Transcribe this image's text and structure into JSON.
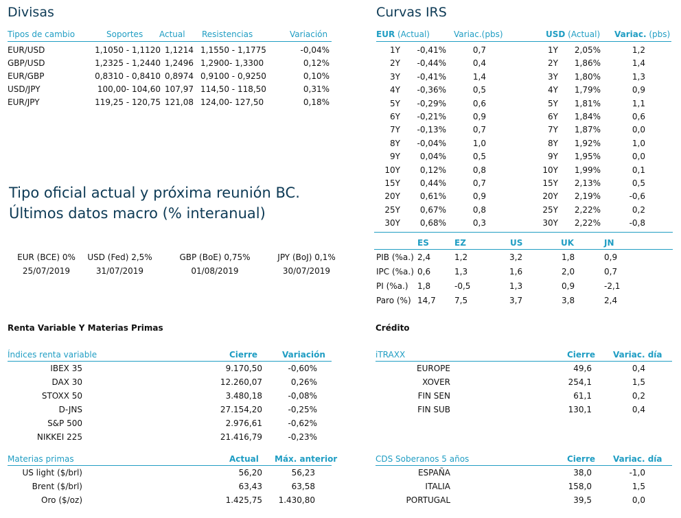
{
  "divisas": {
    "title": "Divisas",
    "headers": [
      "Tipos de cambio",
      "Soportes",
      "Actual",
      "Resistencias",
      "Variación"
    ],
    "rows": [
      {
        "pair": "EUR/USD",
        "soportes": "1,1050 - 1,1120",
        "actual": "1,1214",
        "resistencias": "1,1550 - 1,1775",
        "variacion": "-0,04%"
      },
      {
        "pair": "GBP/USD",
        "soportes": "1,2325 - 1,2440",
        "actual": "1,2496",
        "resistencias": "1,2900- 1,3300",
        "variacion": "0,12%"
      },
      {
        "pair": "EUR/GBP",
        "soportes": "0,8310 - 0,8410",
        "actual": "0,8974",
        "resistencias": "0,9100 - 0,9250",
        "variacion": "0,10%"
      },
      {
        "pair": "USD/JPY",
        "soportes": "100,00- 104,60",
        "actual": "107,97",
        "resistencias": "114,50 - 118,50",
        "variacion": "0,31%"
      },
      {
        "pair": "EUR/JPY",
        "soportes": "119,25 - 120,75",
        "actual": "121,08",
        "resistencias": "124,00- 127,50",
        "variacion": "0,18%"
      }
    ]
  },
  "irs": {
    "title": "Curvas IRS",
    "eur_bold": "EUR",
    "eur_rest": " (Actual)",
    "var_label": "Variac.(pbs)",
    "usd_bold": "USD",
    "usd_rest": " (Actual)",
    "usd_var_bold": "Variac.",
    "usd_var_rest": " (pbs)",
    "rows": [
      {
        "t": "1Y",
        "eur": "-0,41%",
        "eurv": "0,7",
        "t2": "1Y",
        "usd": "2,05%",
        "usdv": "1,2"
      },
      {
        "t": "2Y",
        "eur": "-0,44%",
        "eurv": "0,4",
        "t2": "2Y",
        "usd": "1,86%",
        "usdv": "1,4"
      },
      {
        "t": "3Y",
        "eur": "-0,41%",
        "eurv": "1,4",
        "t2": "3Y",
        "usd": "1,80%",
        "usdv": "1,3"
      },
      {
        "t": "4Y",
        "eur": "-0,36%",
        "eurv": "0,5",
        "t2": "4Y",
        "usd": "1,79%",
        "usdv": "0,9"
      },
      {
        "t": "5Y",
        "eur": "-0,29%",
        "eurv": "0,6",
        "t2": "5Y",
        "usd": "1,81%",
        "usdv": "1,1"
      },
      {
        "t": "6Y",
        "eur": "-0,21%",
        "eurv": "0,9",
        "t2": "6Y",
        "usd": "1,84%",
        "usdv": "0,6"
      },
      {
        "t": "7Y",
        "eur": "-0,13%",
        "eurv": "0,7",
        "t2": "7Y",
        "usd": "1,87%",
        "usdv": "0,0"
      },
      {
        "t": "8Y",
        "eur": "-0,04%",
        "eurv": "1,0",
        "t2": "8Y",
        "usd": "1,92%",
        "usdv": "1,0"
      },
      {
        "t": "9Y",
        "eur": "0,04%",
        "eurv": "0,5",
        "t2": "9Y",
        "usd": "1,95%",
        "usdv": "0,0"
      },
      {
        "t": "10Y",
        "eur": "0,12%",
        "eurv": "0,8",
        "t2": "10Y",
        "usd": "1,99%",
        "usdv": "0,1"
      },
      {
        "t": "15Y",
        "eur": "0,44%",
        "eurv": "0,7",
        "t2": "15Y",
        "usd": "2,13%",
        "usdv": "0,5"
      },
      {
        "t": "20Y",
        "eur": "0,61%",
        "eurv": "0,9",
        "t2": "20Y",
        "usd": "2,19%",
        "usdv": "-0,6"
      },
      {
        "t": "25Y",
        "eur": "0,67%",
        "eurv": "0,8",
        "t2": "25Y",
        "usd": "2,22%",
        "usdv": "0,2"
      },
      {
        "t": "30Y",
        "eur": "0,68%",
        "eurv": "0,3",
        "t2": "30Y",
        "usd": "2,22%",
        "usdv": "-0,8"
      }
    ]
  },
  "tipo_oficial": {
    "title_line1": "Tipo oficial actual y próxima reunión BC.",
    "title_line2": "Últimos datos macro (% interanual)",
    "items": [
      {
        "label": "EUR (BCE) 0%",
        "date": "25/07/2019"
      },
      {
        "label": "USD (Fed) 2,5%",
        "date": "31/07/2019"
      },
      {
        "label": "GBP (BoE) 0,75%",
        "date": "01/08/2019"
      },
      {
        "label": "JPY (BoJ) 0,1%",
        "date": "30/07/2019"
      }
    ]
  },
  "macro": {
    "headers": [
      "ES",
      "EZ",
      "US",
      "UK",
      "JN"
    ],
    "rows": [
      {
        "label": "PIB (%a.)",
        "vals": [
          "2,4",
          "1,2",
          "3,2",
          "1,8",
          "0,9"
        ]
      },
      {
        "label": "IPC (%a.)",
        "vals": [
          "0,6",
          "1,3",
          "1,6",
          "2,0",
          "0,7"
        ]
      },
      {
        "label": "PI (%a.)",
        "vals": [
          "1,8",
          "-0,5",
          "1,3",
          "0,9",
          "-2,1"
        ]
      },
      {
        "label": "Paro (%)",
        "vals": [
          "14,7",
          "7,5",
          "3,7",
          "3,8",
          "2,4"
        ]
      }
    ]
  },
  "renta": {
    "title": "Renta Variable Y Materias Primas",
    "indices_header": "Índices renta variable",
    "cierre_header": "Cierre",
    "variacion_header": "Variación",
    "indices": [
      {
        "name": "IBEX 35",
        "cierre": "9.170,50",
        "var": "-0,60%"
      },
      {
        "name": "DAX 30",
        "cierre": "12.260,07",
        "var": "0,26%"
      },
      {
        "name": "STOXX 50",
        "cierre": "3.480,18",
        "var": "-0,08%"
      },
      {
        "name": "D-JNS",
        "cierre": "27.154,20",
        "var": "-0,25%"
      },
      {
        "name": "S&P 500",
        "cierre": "2.976,61",
        "var": "-0,62%"
      },
      {
        "name": "NIKKEI 225",
        "cierre": "21.416,79",
        "var": "-0,23%"
      }
    ],
    "mp_header": "Materias primas",
    "actual_header": "Actual",
    "max_header": "Máx. anterior",
    "materias": [
      {
        "name": "US light ($/brl)",
        "actual": "56,20",
        "max": "56,23"
      },
      {
        "name": "Brent ($/brl)",
        "actual": "63,43",
        "max": "63,58"
      },
      {
        "name": "Oro ($/oz)",
        "actual": "1.425,75",
        "max": "1.430,80"
      }
    ]
  },
  "credito": {
    "title": "Crédito",
    "itraxx_header": "iTRAXX",
    "cierre_header": "Cierre",
    "variac_header": "Variac. día",
    "itraxx": [
      {
        "name": "EUROPE",
        "cierre": "49,6",
        "var": "0,4"
      },
      {
        "name": "XOVER",
        "cierre": "254,1",
        "var": "1,5"
      },
      {
        "name": "FIN SEN",
        "cierre": "61,1",
        "var": "0,2"
      },
      {
        "name": "FIN SUB",
        "cierre": "130,1",
        "var": "0,4"
      }
    ],
    "cds_header": "CDS Soberanos 5 años",
    "cds": [
      {
        "name": "ESPAÑA",
        "cierre": "38,0",
        "var": "-1,0"
      },
      {
        "name": "ITALIA",
        "cierre": "158,0",
        "var": "1,5"
      },
      {
        "name": "PORTUGAL",
        "cierre": "39,5",
        "var": "0,0"
      }
    ]
  }
}
